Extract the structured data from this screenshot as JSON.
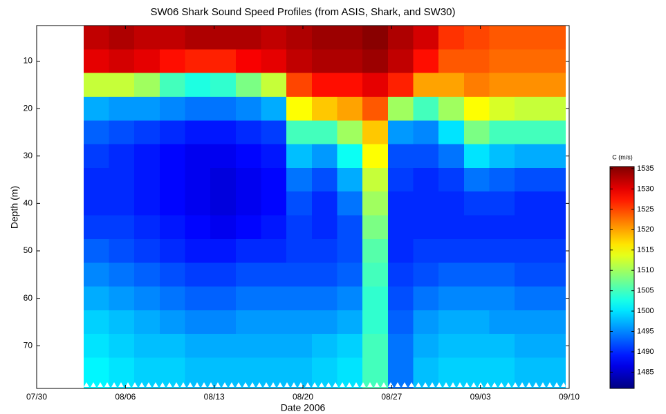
{
  "chart_data": {
    "type": "heatmap",
    "title": "SW06 Shark Sound Speed Profiles (from ASIS, Shark, and SW30)",
    "x_label": "Date  2006",
    "y_label": "Depth (m)",
    "colorbar_label": "C (m/s)",
    "colormap": "jet",
    "y_direction": "down",
    "xlim": [
      0,
      42
    ],
    "xticks": [
      {
        "value": 0,
        "label": "07/30"
      },
      {
        "value": 7,
        "label": "08/06"
      },
      {
        "value": 14,
        "label": "08/13"
      },
      {
        "value": 21,
        "label": "08/20"
      },
      {
        "value": 28,
        "label": "08/27"
      },
      {
        "value": 35,
        "label": "09/03"
      },
      {
        "value": 42,
        "label": "09/10"
      }
    ],
    "ylim": [
      2.5,
      79
    ],
    "yticks": [
      10,
      20,
      30,
      40,
      50,
      60,
      70
    ],
    "clim": [
      1481,
      1535.5
    ],
    "cticks": [
      1485,
      1490,
      1495,
      1500,
      1505,
      1510,
      1515,
      1520,
      1525,
      1530,
      1535
    ],
    "x": [
      4.7,
      6.7,
      8.7,
      10.7,
      12.7,
      14.7,
      16.7,
      18.7,
      20.7,
      22.7,
      24.7,
      26.7,
      28.7,
      30.7,
      32.7,
      34.7,
      36.7,
      38.7,
      40.7
    ],
    "y": [
      5,
      10,
      15,
      20,
      25,
      30,
      35,
      40,
      45,
      50,
      55,
      60,
      65,
      70,
      75
    ],
    "z": [
      [
        1532,
        1533,
        1532,
        1532,
        1533,
        1533,
        1533,
        1532,
        1533,
        1534,
        1534,
        1535,
        1533,
        1531,
        1526,
        1525,
        1524,
        1524,
        1524
      ],
      [
        1530,
        1531,
        1530,
        1528,
        1527,
        1527,
        1529,
        1530,
        1532,
        1533,
        1533,
        1534,
        1532,
        1528,
        1524,
        1524,
        1523,
        1523,
        1523
      ],
      [
        1512,
        1512,
        1510,
        1505,
        1503,
        1504,
        1508,
        1512,
        1525,
        1528,
        1528,
        1530,
        1527,
        1520,
        1520,
        1522,
        1521,
        1521,
        1521
      ],
      [
        1497,
        1496,
        1496,
        1495,
        1494,
        1494,
        1495,
        1497,
        1515,
        1518,
        1520,
        1524,
        1510,
        1505,
        1510,
        1515,
        1513,
        1512,
        1512
      ],
      [
        1493,
        1492,
        1491,
        1490,
        1489,
        1489,
        1490,
        1491,
        1505,
        1505,
        1510,
        1518,
        1496,
        1495,
        1500,
        1508,
        1505,
        1505,
        1505
      ],
      [
        1491,
        1490,
        1489,
        1488,
        1487,
        1487,
        1488,
        1489,
        1498,
        1496,
        1502,
        1515,
        1492,
        1492,
        1494,
        1500,
        1498,
        1497,
        1497
      ],
      [
        1490,
        1490,
        1489,
        1488,
        1487,
        1486,
        1487,
        1488,
        1494,
        1492,
        1497,
        1512,
        1491,
        1490,
        1491,
        1494,
        1493,
        1492,
        1492
      ],
      [
        1490,
        1490,
        1489,
        1488,
        1487,
        1486,
        1487,
        1488,
        1492,
        1490,
        1494,
        1510,
        1490,
        1490,
        1490,
        1491,
        1491,
        1490,
        1490
      ],
      [
        1491,
        1491,
        1490,
        1489,
        1488,
        1487,
        1488,
        1489,
        1491,
        1490,
        1492,
        1508,
        1490,
        1490,
        1490,
        1490,
        1490,
        1490,
        1490
      ],
      [
        1493,
        1492,
        1491,
        1490,
        1489,
        1489,
        1490,
        1490,
        1491,
        1491,
        1492,
        1506,
        1490,
        1491,
        1491,
        1491,
        1491,
        1491,
        1491
      ],
      [
        1495,
        1494,
        1493,
        1492,
        1491,
        1491,
        1492,
        1492,
        1492,
        1492,
        1493,
        1505,
        1491,
        1492,
        1493,
        1493,
        1493,
        1492,
        1492
      ],
      [
        1497,
        1496,
        1495,
        1494,
        1493,
        1493,
        1494,
        1494,
        1494,
        1494,
        1495,
        1504,
        1492,
        1494,
        1495,
        1495,
        1495,
        1494,
        1494
      ],
      [
        1499,
        1498,
        1497,
        1496,
        1495,
        1495,
        1496,
        1496,
        1496,
        1496,
        1497,
        1504,
        1493,
        1496,
        1497,
        1497,
        1496,
        1496,
        1496
      ],
      [
        1500,
        1499,
        1498,
        1498,
        1497,
        1497,
        1497,
        1497,
        1497,
        1498,
        1499,
        1505,
        1494,
        1497,
        1498,
        1498,
        1498,
        1497,
        1497
      ],
      [
        1501,
        1500,
        1499,
        1499,
        1498,
        1498,
        1498,
        1498,
        1498,
        1499,
        1500,
        1505,
        1494,
        1498,
        1499,
        1499,
        1499,
        1498,
        1498
      ]
    ]
  }
}
